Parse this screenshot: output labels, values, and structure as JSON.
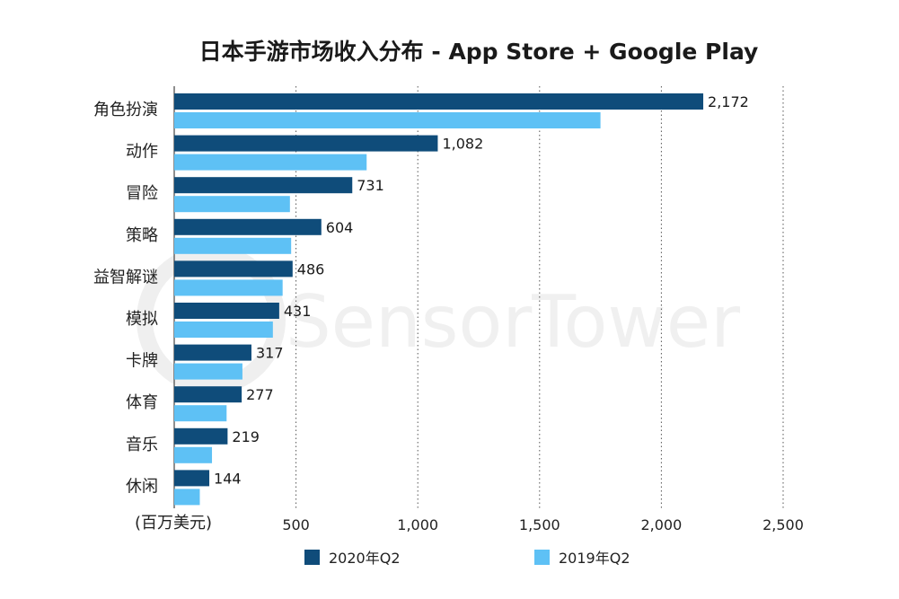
{
  "chart_data": {
    "type": "bar",
    "orientation": "horizontal",
    "title": "日本手游市场收入分布 - App Store + Google Play",
    "unit_label": "(百万美元)",
    "categories": [
      "角色扮演",
      "动作",
      "冒险",
      "策略",
      "益智解谜",
      "模拟",
      "卡牌",
      "体育",
      "音乐",
      "休闲"
    ],
    "series": [
      {
        "name": "2020年Q2",
        "color": "#0f4c7a",
        "values": [
          2172,
          1082,
          731,
          604,
          486,
          431,
          317,
          277,
          219,
          144
        ]
      },
      {
        "name": "2019年Q2",
        "color": "#5ec1f5",
        "values": [
          1750,
          790,
          475,
          480,
          445,
          405,
          280,
          215,
          155,
          105
        ]
      }
    ],
    "data_labels": [
      "2,172",
      "1,082",
      "731",
      "604",
      "486",
      "431",
      "317",
      "277",
      "219",
      "144"
    ],
    "xlim": [
      0,
      2500
    ],
    "xticks": [
      500,
      1000,
      1500,
      2000,
      2500
    ],
    "xtick_labels": [
      "500",
      "1,000",
      "1,500",
      "2,000",
      "2,500"
    ],
    "grid": "vertical-dotted",
    "legend_position": "bottom"
  },
  "watermark": {
    "text": "SensorTower",
    "logo": "sensor-tower-logo-icon"
  }
}
